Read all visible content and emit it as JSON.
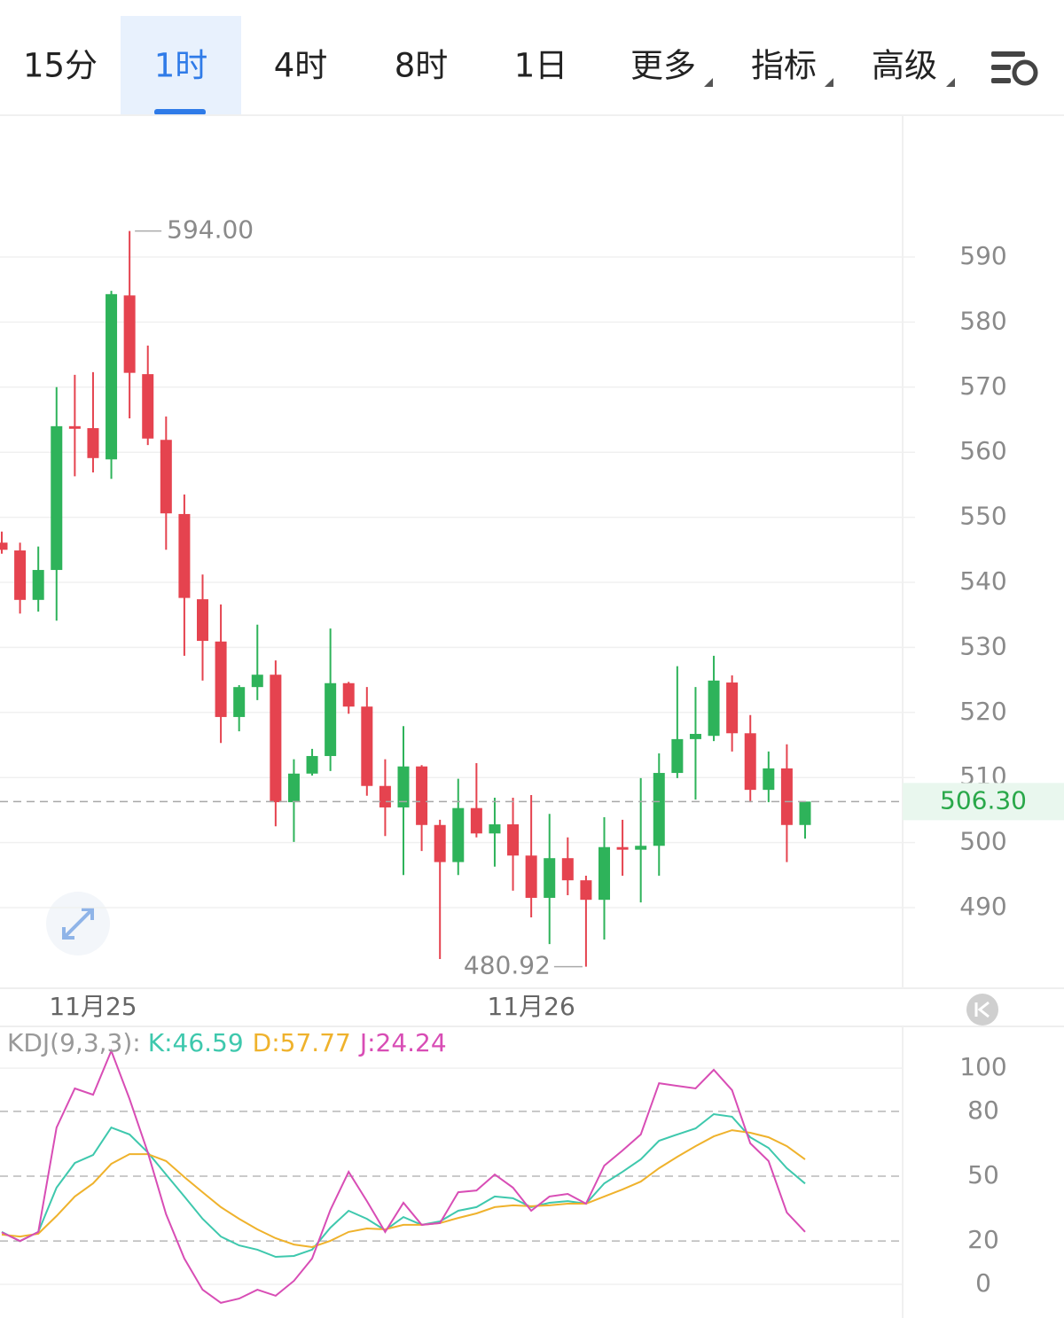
{
  "tabs": [
    "15分",
    "1时",
    "4时",
    "8时",
    "1日",
    "更多",
    "指标",
    "高级"
  ],
  "selected_tab": 1,
  "chart_data": [
    {
      "type": "candlestick",
      "categories": [
        null,
        null,
        null,
        null,
        null,
        "11月25",
        null,
        null,
        null,
        null,
        null,
        null,
        null,
        null,
        null,
        null,
        null,
        null,
        null,
        null,
        null,
        null,
        null,
        null,
        null,
        null,
        null,
        null,
        null,
        "11月26",
        null,
        null,
        null,
        null,
        null,
        null,
        null,
        null,
        null,
        null,
        null,
        null,
        null,
        null,
        null
      ],
      "open": [
        546.1,
        544.9,
        537.3,
        541.9,
        564.0,
        563.7,
        558.9,
        584.1,
        572.0,
        561.9,
        550.5,
        537.4,
        530.9,
        519.3,
        523.9,
        525.8,
        506.2,
        510.6,
        513.3,
        524.5,
        520.9,
        508.7,
        505.4,
        511.7,
        502.7,
        497.0,
        505.3,
        501.4,
        502.8,
        498.0,
        491.5,
        497.6,
        494.2,
        491.2,
        499.3,
        498.9,
        499.5,
        510.7,
        515.9,
        516.4,
        524.6,
        516.8,
        508.1,
        511.4,
        502.7
      ],
      "high": [
        547.8,
        546.1,
        545.5,
        570.0,
        571.9,
        572.3,
        584.8,
        594.0,
        576.4,
        565.5,
        553.5,
        541.2,
        536.6,
        524.2,
        533.5,
        528.0,
        512.8,
        514.4,
        532.9,
        524.7,
        523.9,
        512.8,
        517.9,
        511.9,
        503.5,
        509.8,
        512.2,
        506.9,
        506.9,
        507.3,
        504.4,
        500.8,
        494.9,
        503.9,
        503.5,
        509.9,
        513.7,
        527.1,
        523.9,
        528.7,
        525.7,
        519.6,
        514.0,
        515.1,
        506.3
      ],
      "low": [
        544.4,
        535.2,
        535.5,
        534.1,
        556.3,
        556.9,
        555.9,
        565.2,
        561.1,
        545.0,
        528.7,
        524.9,
        515.3,
        517.1,
        521.9,
        502.5,
        500.1,
        510.3,
        511.0,
        519.8,
        507.2,
        501.0,
        495.0,
        498.7,
        482.1,
        495.0,
        500.8,
        496.3,
        492.6,
        488.5,
        484.4,
        491.9,
        480.92,
        485.1,
        494.9,
        490.8,
        494.9,
        509.9,
        506.6,
        515.6,
        514.0,
        506.2,
        506.2,
        497.0,
        500.6
      ],
      "close": [
        545.0,
        537.3,
        541.9,
        564.0,
        563.6,
        559.1,
        584.3,
        572.2,
        562.1,
        550.6,
        537.6,
        531.0,
        519.3,
        523.9,
        525.8,
        506.2,
        510.6,
        513.3,
        524.5,
        520.9,
        508.7,
        505.4,
        511.7,
        502.7,
        497.0,
        505.3,
        501.4,
        502.8,
        498.0,
        491.5,
        497.6,
        494.2,
        491.2,
        499.3,
        498.9,
        499.5,
        510.7,
        515.9,
        516.7,
        524.9,
        516.8,
        508.1,
        511.4,
        502.7,
        506.3
      ],
      "up_color": "#2eb35a",
      "down_color": "#e5434f",
      "ylim": [
        477.6,
        611.8
      ],
      "yticks": [
        490,
        500,
        510,
        520,
        530,
        540,
        550,
        560,
        570,
        580,
        590
      ],
      "grid": true,
      "high_label": "594.00",
      "low_label": "480.92",
      "last_label": "506.30"
    },
    {
      "type": "line",
      "title": "KDJ(9,3,3):",
      "series": [
        {
          "name": "K:46.59",
          "color": "#3ec8ad",
          "values": [
            24.2,
            20,
            24.2,
            44.7,
            56.1,
            59.8,
            72.5,
            69.3,
            61,
            50.8,
            40.6,
            30.3,
            22.1,
            18,
            16,
            12.7,
            13.1,
            16,
            26.2,
            34,
            30.3,
            25,
            31.1,
            27.5,
            29.1,
            34,
            35.7,
            40.6,
            39.8,
            35.7,
            37.7,
            38.5,
            37.3,
            46.7,
            52,
            57.8,
            66.4,
            69.3,
            72.1,
            78.7,
            77.5,
            68,
            63.1,
            53.7,
            46.59
          ]
        },
        {
          "name": "D:57.77",
          "color": "#efb22c",
          "values": [
            23,
            22.1,
            23.4,
            31.6,
            40.6,
            46.7,
            55.7,
            60.2,
            60.2,
            57,
            49.6,
            42.6,
            35.7,
            30.3,
            25.4,
            21.3,
            18.4,
            17.2,
            20.1,
            24.2,
            25.8,
            25.4,
            27.5,
            27.5,
            28.3,
            30.7,
            32.8,
            35.7,
            36.5,
            36.1,
            36.5,
            37.3,
            37.3,
            40.6,
            43.9,
            47.5,
            53.7,
            59,
            63.9,
            68.4,
            71.3,
            70.1,
            68,
            63.9,
            57.77
          ]
        },
        {
          "name": "J:24.24",
          "color": "#d84db5",
          "values": [
            24,
            20,
            24.2,
            72.5,
            90.6,
            87.7,
            108,
            85.7,
            61,
            32.4,
            11.9,
            -2.5,
            -8.6,
            -6.6,
            -2.5,
            -5.3,
            1.6,
            11.9,
            34.4,
            52,
            38.5,
            24.2,
            37.7,
            27.5,
            28.3,
            42.6,
            43.4,
            50.8,
            44.7,
            34,
            40.6,
            41.8,
            37.3,
            54.9,
            61.9,
            69.3,
            93,
            91.8,
            90.6,
            99.2,
            89.8,
            65.2,
            57,
            33.2,
            24.24
          ]
        }
      ],
      "ylim": [
        -15.6,
        119.3
      ],
      "yticks": [
        0,
        20,
        50,
        80,
        100
      ],
      "grid": true
    }
  ]
}
